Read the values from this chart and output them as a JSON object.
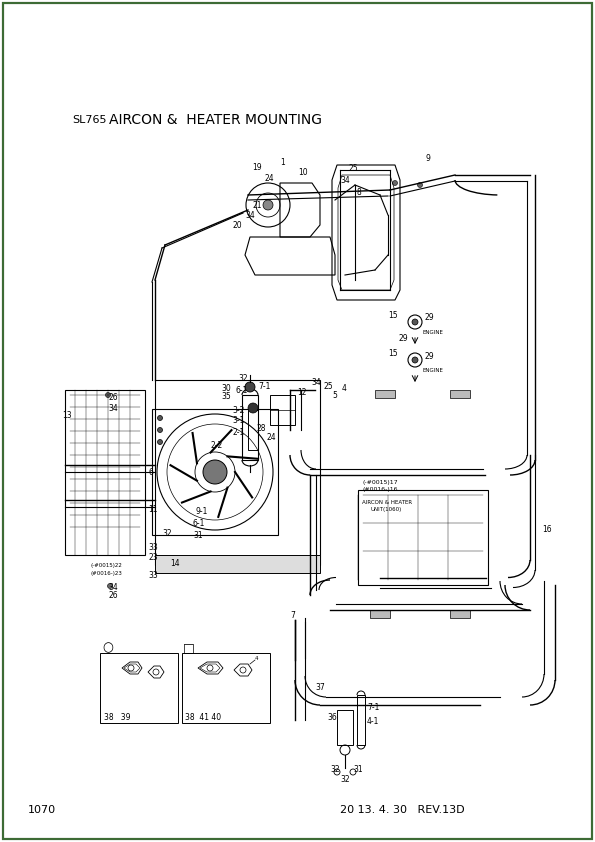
{
  "title": "AIRCON &  HEATER MOUNTING",
  "model": "SL765",
  "page_number": "1070",
  "date_rev": "20 13. 4. 30   REV.13D",
  "border_color": "#3d6b35",
  "bg": "#ffffff",
  "lc": "#000000",
  "title_fs": 10,
  "label_fs": 5.5,
  "small_fs": 4.5,
  "page_fs": 8
}
